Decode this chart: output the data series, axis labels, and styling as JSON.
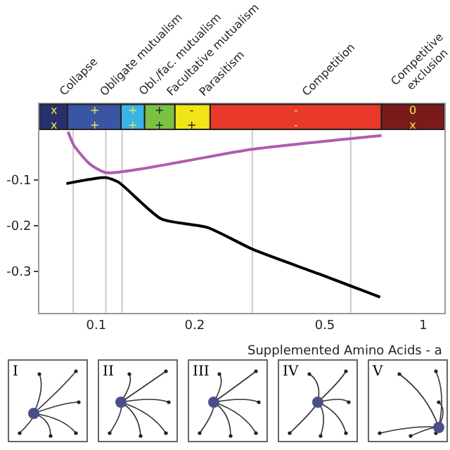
{
  "chart_data": {
    "type": "line",
    "xlabel": "Supplemented Amino Acids - a",
    "log": "x",
    "xlim": [
      0.067,
      1.16
    ],
    "xticks": [
      0.1,
      0.2,
      0.5,
      1
    ],
    "ylim": [
      -0.39,
      0.065
    ],
    "yticks": [
      -0.1,
      -0.2,
      -0.3
    ],
    "grid": false,
    "series": [
      {
        "color": "#b05cb0",
        "x": [
          0.082,
          0.0855,
          0.0955,
          0.107,
          0.3,
          0.745
        ],
        "values": [
          0.005,
          -0.025,
          -0.065,
          -0.084,
          -0.033,
          -0.003
        ]
      },
      {
        "color": "#000000",
        "x": [
          0.081,
          0.107,
          0.117,
          0.158,
          0.219,
          0.302,
          0.479,
          0.738
        ],
        "values": [
          -0.108,
          -0.095,
          -0.105,
          -0.185,
          -0.204,
          -0.252,
          -0.305,
          -0.356
        ]
      }
    ],
    "bands": [
      {
        "axis": "x",
        "from": 0.067,
        "to": 0.0817,
        "label": "Collapse",
        "color": "#27306b"
      },
      {
        "axis": "x",
        "from": 0.0817,
        "to": 0.119,
        "label": "Obligate mutualism",
        "color": "#3a55a4"
      },
      {
        "axis": "x",
        "from": 0.119,
        "to": 0.1406,
        "label": "Obl./fac. mutualism",
        "color": "#3ab4e6"
      },
      {
        "axis": "x",
        "from": 0.1406,
        "to": 0.174,
        "label": "Facultative mutualism",
        "color": "#7cc242"
      },
      {
        "axis": "x",
        "from": 0.174,
        "to": 0.223,
        "label": "Parasitism",
        "color": "#f1e418"
      },
      {
        "axis": "x",
        "from": 0.223,
        "to": 0.745,
        "label": "Competition",
        "color": "#e8392a"
      },
      {
        "axis": "x",
        "from": 0.745,
        "to": 1.16,
        "label": "Competitive exclusion",
        "color": "#7a1a1a"
      }
    ],
    "ref_lines": [
      {
        "axis": "x",
        "value": 0.085,
        "color": "#cccccc"
      },
      {
        "axis": "x",
        "value": 0.107,
        "color": "#cccccc"
      },
      {
        "axis": "x",
        "value": 0.12,
        "color": "#cccccc"
      },
      {
        "axis": "x",
        "value": 0.3,
        "color": "#cccccc"
      },
      {
        "axis": "x",
        "value": 0.6,
        "color": "#cccccc"
      }
    ],
    "annotations": [
      "x x",
      "+ +",
      "+ +",
      "+ +",
      "- +",
      "- -",
      "0 x",
      "I",
      "II",
      "III",
      "IV",
      "V"
    ]
  }
}
